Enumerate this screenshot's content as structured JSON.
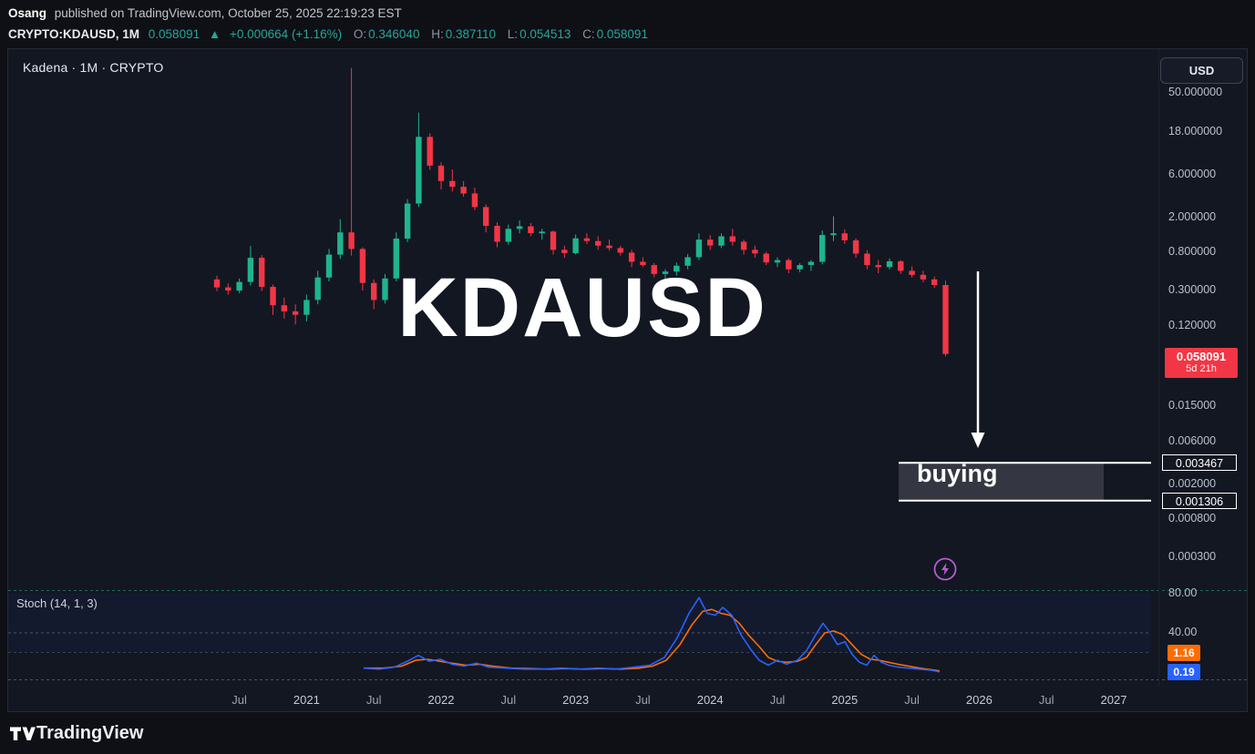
{
  "header": {
    "author": "Osang",
    "published_text": "published on TradingView.com, October 25, 2025 22:19:23 EST",
    "ticker": {
      "symbol": "CRYPTO:KDAUSD, 1M",
      "price": "0.058091",
      "direction_icon": "▲",
      "change": "+0.000664 (+1.16%)",
      "ohlc": [
        {
          "label": "O:",
          "value": "0.346040"
        },
        {
          "label": "H:",
          "value": "0.387110"
        },
        {
          "label": "L:",
          "value": "0.054513"
        },
        {
          "label": "C:",
          "value": "0.058091"
        }
      ]
    }
  },
  "chart": {
    "legend": "Kadena · 1M · CRYPTO",
    "currency_button": "USD",
    "watermark": "KDAUSD",
    "price_badge": {
      "price": "0.058091",
      "countdown": "5d 21h"
    },
    "colors": {
      "up": "#1fb48c",
      "down": "#f23645",
      "badge": "#f23645",
      "stoch_k": "#2962ff",
      "stoch_d": "#ff6d00",
      "axis_text": "#bac0cc",
      "drawing": "#ffffff",
      "flash": "#b95ccf",
      "pane_dash": "#2a9d8f",
      "grid_dash": "#4d5260"
    }
  },
  "price_axis": {
    "labels": [
      {
        "text": "50.000000",
        "price": 50
      },
      {
        "text": "18.000000",
        "price": 18
      },
      {
        "text": "6.000000",
        "price": 6
      },
      {
        "text": "2.000000",
        "price": 2
      },
      {
        "text": "0.800000",
        "price": 0.8
      },
      {
        "text": "0.300000",
        "price": 0.3
      },
      {
        "text": "0.120000",
        "price": 0.12
      },
      {
        "text": "0.015000",
        "price": 0.015
      },
      {
        "text": "0.006000",
        "price": 0.006
      },
      {
        "text": "0.002000",
        "price": 0.002
      },
      {
        "text": "0.000800",
        "price": 0.0008
      },
      {
        "text": "0.000300",
        "price": 0.0003
      }
    ]
  },
  "time_axis": {
    "ticks": [
      {
        "label": "Jul",
        "m": 2
      },
      {
        "label": "2021",
        "m": 8
      },
      {
        "label": "Jul",
        "m": 14
      },
      {
        "label": "2022",
        "m": 20
      },
      {
        "label": "Jul",
        "m": 26
      },
      {
        "label": "2023",
        "m": 32
      },
      {
        "label": "Jul",
        "m": 38
      },
      {
        "label": "2024",
        "m": 44
      },
      {
        "label": "Jul",
        "m": 50
      },
      {
        "label": "2025",
        "m": 56
      },
      {
        "label": "Jul",
        "m": 62
      },
      {
        "label": "2026",
        "m": 68
      },
      {
        "label": "Jul",
        "m": 74
      },
      {
        "label": "2027",
        "m": 80
      }
    ]
  },
  "stoch": {
    "label": "Stoch (14, 1, 3)",
    "levels": [
      {
        "text": "80.00",
        "value": 80
      },
      {
        "text": "40.00",
        "value": 40
      }
    ],
    "band": [
      20,
      80
    ],
    "badges": [
      {
        "text": "1.16",
        "color": "#ff6d00"
      },
      {
        "text": "0.19",
        "color": "#2962ff"
      }
    ]
  },
  "drawings": {
    "zone": {
      "label": "buying",
      "upper_price": 0.003467,
      "lower_price": 0.001306,
      "upper_text": "0.003467",
      "lower_text": "0.001306"
    },
    "arrow": {
      "direction": "down"
    }
  },
  "footer": {
    "brand": "TradingView"
  },
  "chart_data": {
    "type": "candlestick",
    "symbol": "KDAUSD",
    "timeframe": "1M",
    "scale": "log",
    "ylim": [
      0.0003,
      50
    ],
    "start_month": "2020-05",
    "columns": [
      "open",
      "high",
      "low",
      "close"
    ],
    "candles": [
      [
        0.4,
        0.44,
        0.295,
        0.325
      ],
      [
        0.325,
        0.36,
        0.27,
        0.3
      ],
      [
        0.3,
        0.41,
        0.28,
        0.375
      ],
      [
        0.375,
        0.95,
        0.34,
        0.7
      ],
      [
        0.7,
        0.75,
        0.295,
        0.33
      ],
      [
        0.33,
        0.35,
        0.16,
        0.205
      ],
      [
        0.205,
        0.25,
        0.145,
        0.175
      ],
      [
        0.175,
        0.21,
        0.125,
        0.16
      ],
      [
        0.16,
        0.27,
        0.135,
        0.235
      ],
      [
        0.235,
        0.5,
        0.21,
        0.42
      ],
      [
        0.42,
        0.88,
        0.38,
        0.76
      ],
      [
        0.76,
        1.9,
        0.68,
        1.35
      ],
      [
        1.35,
        95.0,
        0.74,
        0.88
      ],
      [
        0.88,
        0.92,
        0.3,
        0.365
      ],
      [
        0.365,
        0.4,
        0.185,
        0.235
      ],
      [
        0.235,
        0.46,
        0.215,
        0.41
      ],
      [
        0.41,
        1.35,
        0.38,
        1.15
      ],
      [
        1.15,
        3.2,
        1.05,
        2.85
      ],
      [
        2.85,
        30.0,
        2.6,
        16.0
      ],
      [
        16.0,
        17.5,
        6.8,
        7.6
      ],
      [
        7.6,
        8.3,
        4.1,
        5.1
      ],
      [
        5.1,
        6.9,
        3.9,
        4.4
      ],
      [
        4.4,
        5.1,
        3.4,
        3.7
      ],
      [
        3.7,
        4.3,
        2.4,
        2.6
      ],
      [
        2.6,
        2.8,
        1.35,
        1.6
      ],
      [
        1.6,
        1.75,
        0.92,
        1.06
      ],
      [
        1.06,
        1.65,
        0.98,
        1.48
      ],
      [
        1.48,
        1.85,
        1.32,
        1.58
      ],
      [
        1.58,
        1.72,
        1.22,
        1.32
      ],
      [
        1.32,
        1.48,
        1.12,
        1.38
      ],
      [
        1.38,
        1.42,
        0.76,
        0.86
      ],
      [
        0.86,
        0.96,
        0.7,
        0.79
      ],
      [
        0.79,
        1.28,
        0.76,
        1.16
      ],
      [
        1.16,
        1.32,
        1.0,
        1.08
      ],
      [
        1.08,
        1.22,
        0.86,
        0.96
      ],
      [
        0.96,
        1.12,
        0.84,
        0.9
      ],
      [
        0.9,
        0.96,
        0.74,
        0.8
      ],
      [
        0.8,
        0.86,
        0.55,
        0.63
      ],
      [
        0.63,
        0.71,
        0.55,
        0.58
      ],
      [
        0.58,
        0.61,
        0.42,
        0.46
      ],
      [
        0.46,
        0.52,
        0.4,
        0.49
      ],
      [
        0.49,
        0.62,
        0.44,
        0.57
      ],
      [
        0.57,
        0.77,
        0.52,
        0.71
      ],
      [
        0.71,
        1.32,
        0.66,
        1.12
      ],
      [
        1.12,
        1.26,
        0.86,
        0.96
      ],
      [
        0.96,
        1.32,
        0.9,
        1.22
      ],
      [
        1.22,
        1.48,
        0.96,
        1.06
      ],
      [
        1.06,
        1.12,
        0.76,
        0.86
      ],
      [
        0.86,
        0.96,
        0.7,
        0.78
      ],
      [
        0.78,
        0.82,
        0.58,
        0.62
      ],
      [
        0.62,
        0.71,
        0.55,
        0.66
      ],
      [
        0.66,
        0.69,
        0.47,
        0.52
      ],
      [
        0.52,
        0.61,
        0.48,
        0.58
      ],
      [
        0.58,
        0.66,
        0.5,
        0.63
      ],
      [
        0.63,
        1.42,
        0.59,
        1.26
      ],
      [
        1.26,
        2.05,
        1.08,
        1.32
      ],
      [
        1.32,
        1.46,
        1.0,
        1.1
      ],
      [
        1.1,
        1.16,
        0.7,
        0.78
      ],
      [
        0.78,
        0.85,
        0.52,
        0.58
      ],
      [
        0.58,
        0.66,
        0.47,
        0.55
      ],
      [
        0.55,
        0.69,
        0.52,
        0.64
      ],
      [
        0.64,
        0.66,
        0.46,
        0.5
      ],
      [
        0.5,
        0.56,
        0.42,
        0.45
      ],
      [
        0.45,
        0.5,
        0.37,
        0.4
      ],
      [
        0.4,
        0.43,
        0.32,
        0.346
      ],
      [
        0.34604,
        0.38711,
        0.054513,
        0.058091
      ]
    ],
    "indicator": {
      "name": "Stoch (14, 1, 3)",
      "k_last": 0.19,
      "d_last": 1.16,
      "k_points": [
        [
          390,
          4
        ],
        [
          407,
          3
        ],
        [
          424,
          5
        ],
        [
          440,
          12
        ],
        [
          450,
          17
        ],
        [
          462,
          11
        ],
        [
          474,
          13
        ],
        [
          487,
          8
        ],
        [
          500,
          6
        ],
        [
          514,
          9
        ],
        [
          527,
          5
        ],
        [
          547,
          4
        ],
        [
          567,
          3
        ],
        [
          587,
          3
        ],
        [
          607,
          4
        ],
        [
          627,
          3
        ],
        [
          647,
          4
        ],
        [
          667,
          3
        ],
        [
          687,
          5
        ],
        [
          704,
          7
        ],
        [
          720,
          15
        ],
        [
          734,
          35
        ],
        [
          747,
          60
        ],
        [
          758,
          76
        ],
        [
          767,
          60
        ],
        [
          776,
          58
        ],
        [
          784,
          66
        ],
        [
          794,
          58
        ],
        [
          804,
          38
        ],
        [
          814,
          24
        ],
        [
          824,
          12
        ],
        [
          834,
          7
        ],
        [
          844,
          12
        ],
        [
          854,
          8
        ],
        [
          866,
          12
        ],
        [
          876,
          22
        ],
        [
          886,
          38
        ],
        [
          894,
          50
        ],
        [
          902,
          40
        ],
        [
          910,
          28
        ],
        [
          918,
          31
        ],
        [
          926,
          18
        ],
        [
          934,
          10
        ],
        [
          942,
          7
        ],
        [
          950,
          17
        ],
        [
          958,
          10
        ],
        [
          966,
          7
        ],
        [
          976,
          5
        ],
        [
          988,
          4
        ],
        [
          1000,
          3
        ],
        [
          1012,
          2
        ],
        [
          1022,
          0.19
        ]
      ],
      "d_points": [
        [
          390,
          4
        ],
        [
          412,
          4
        ],
        [
          432,
          6
        ],
        [
          447,
          12
        ],
        [
          460,
          13
        ],
        [
          474,
          11
        ],
        [
          487,
          9
        ],
        [
          502,
          7
        ],
        [
          517,
          8
        ],
        [
          532,
          6
        ],
        [
          552,
          4
        ],
        [
          572,
          3.5
        ],
        [
          592,
          3
        ],
        [
          612,
          3.5
        ],
        [
          632,
          3
        ],
        [
          652,
          3.5
        ],
        [
          672,
          3
        ],
        [
          692,
          4
        ],
        [
          707,
          6
        ],
        [
          722,
          12
        ],
        [
          737,
          28
        ],
        [
          750,
          48
        ],
        [
          762,
          62
        ],
        [
          772,
          64
        ],
        [
          782,
          60
        ],
        [
          792,
          58
        ],
        [
          802,
          50
        ],
        [
          812,
          38
        ],
        [
          824,
          26
        ],
        [
          834,
          15
        ],
        [
          844,
          11
        ],
        [
          854,
          10
        ],
        [
          866,
          11
        ],
        [
          876,
          15
        ],
        [
          886,
          28
        ],
        [
          896,
          40
        ],
        [
          906,
          42
        ],
        [
          916,
          38
        ],
        [
          926,
          28
        ],
        [
          936,
          18
        ],
        [
          946,
          13
        ],
        [
          956,
          12
        ],
        [
          966,
          10
        ],
        [
          976,
          8
        ],
        [
          988,
          6
        ],
        [
          1000,
          4
        ],
        [
          1012,
          2.5
        ],
        [
          1022,
          1.16
        ]
      ]
    }
  }
}
